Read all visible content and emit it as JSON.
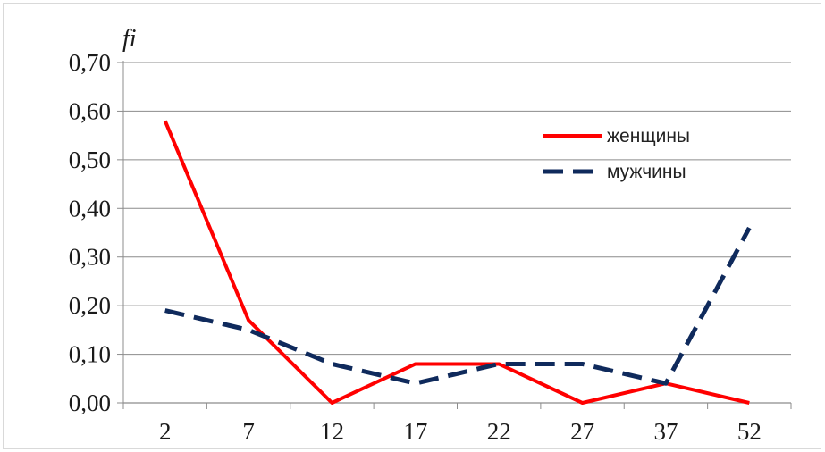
{
  "chart_data": {
    "type": "line",
    "ylabel": "fi",
    "xlabel": "",
    "categories": [
      "2",
      "7",
      "12",
      "17",
      "22",
      "27",
      "37",
      "52"
    ],
    "ylim": [
      0,
      0.7
    ],
    "yticks": [
      "0,00",
      "0,10",
      "0,20",
      "0,30",
      "0,40",
      "0,50",
      "0,60",
      "0,70"
    ],
    "grid": true,
    "legend_position": "top-right",
    "series": [
      {
        "name": "женщины",
        "values": [
          0.58,
          0.17,
          0.0,
          0.08,
          0.08,
          0.0,
          0.04,
          0.0
        ],
        "color": "#ff0000",
        "style": "solid"
      },
      {
        "name": "мужчины",
        "values": [
          0.19,
          0.15,
          0.08,
          0.04,
          0.08,
          0.08,
          0.04,
          0.36
        ],
        "color": "#0f2a5c",
        "style": "dashed"
      }
    ]
  }
}
